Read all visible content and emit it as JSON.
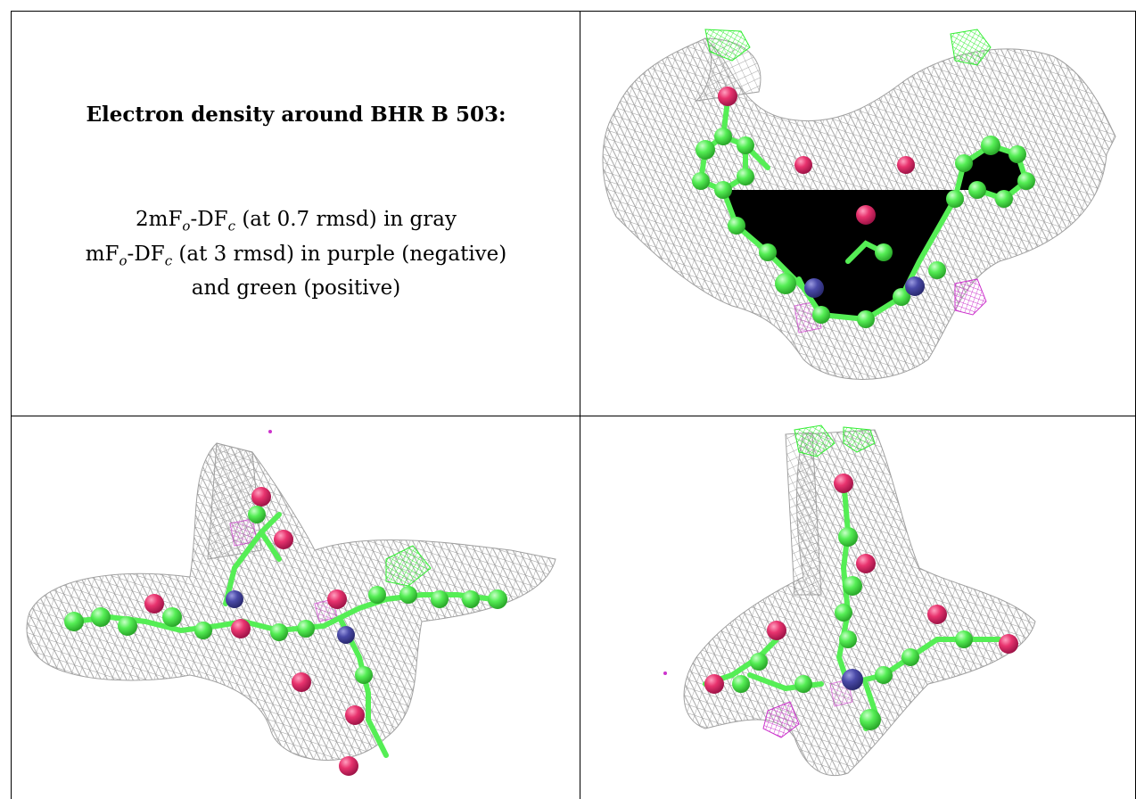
{
  "title": "Electron density around BHR B 503:",
  "legend": {
    "line1_pre": "2mF",
    "line1_sub_o": "o",
    "line1_mid": "-DF",
    "line1_sub_c": "c",
    "line1_post": " (at 0.7 rmsd) in gray",
    "line2_pre": "mF",
    "line2_sub_o": "o",
    "line2_mid": "-DF",
    "line2_sub_c": "c",
    "line2_post": " (at 3 rmsd) in purple (negative)",
    "line3": "and green (positive)"
  },
  "colors": {
    "mesh_gray": "#9a9a9a",
    "positive_green": "#33ee33",
    "negative_purple": "#cc33cc",
    "carbon": "#55ee55",
    "oxygen": "#e8336e",
    "nitrogen": "#4a4aa8"
  },
  "panels": [
    "view-top-right",
    "view-bottom-left",
    "view-bottom-right"
  ]
}
